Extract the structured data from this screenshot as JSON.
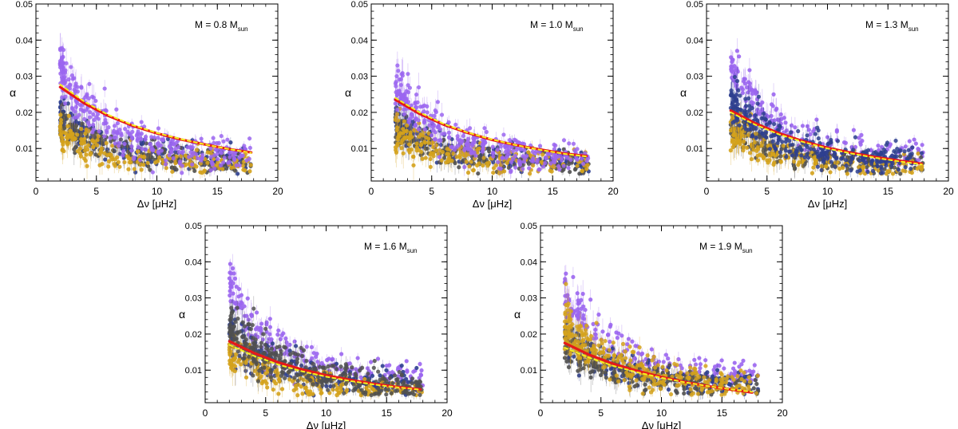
{
  "figure": {
    "background": "#ffffff"
  },
  "colors": {
    "purple": "#9b66f0",
    "navy": "#2e3f8f",
    "gray": "#505050",
    "gold": "#d4a21c",
    "fit_red": "#e41a1a",
    "fit_yellow": "#f5f020"
  },
  "chart_data": [
    {
      "type": "scatter",
      "label": {
        "prefix": "M = ",
        "value": "0.8",
        "unit": "M",
        "unit_sub": "sun"
      },
      "xlabel": {
        "delta": "Δν",
        "units": " [μHz]"
      },
      "ylabel": "α",
      "xlim": [
        0,
        20
      ],
      "ylim": [
        0.001,
        0.05
      ],
      "xticks": [
        "0",
        "5",
        "10",
        "15",
        "20"
      ],
      "yticks": [
        "0.01",
        "0.02",
        "0.03",
        "0.04",
        "0.05"
      ],
      "ytick_values": [
        0.01,
        0.02,
        0.03,
        0.04,
        0.05
      ],
      "xtick_values": [
        0,
        5,
        10,
        15,
        20
      ],
      "front_group": "purple",
      "front_scale": 1.0,
      "series": [
        {
          "group": "purple",
          "trend": {
            "a": 0.033,
            "b": 0.008,
            "k": 0.27
          },
          "spread": 0.0035
        },
        {
          "group": "navy",
          "trend": {
            "a": 0.019,
            "b": 0.0065,
            "k": 0.25
          },
          "spread": 0.0028
        },
        {
          "group": "gray",
          "trend": {
            "a": 0.017,
            "b": 0.006,
            "k": 0.25
          },
          "spread": 0.0026
        },
        {
          "group": "gold",
          "trend": {
            "a": 0.015,
            "b": 0.0055,
            "k": 0.26
          },
          "spread": 0.0028
        }
      ],
      "fit_red": {
        "x": [
          2,
          4,
          6,
          8,
          10,
          12,
          14,
          16,
          17.8
        ],
        "y": [
          0.027,
          0.0225,
          0.019,
          0.0163,
          0.0142,
          0.0125,
          0.0111,
          0.0098,
          0.0089
        ]
      },
      "fit_yellow": {
        "x": [
          2,
          4,
          6,
          8,
          10,
          12,
          14,
          16,
          17.8
        ],
        "y": [
          0.0277,
          0.023,
          0.0193,
          0.0165,
          0.0143,
          0.0126,
          0.0111,
          0.0098,
          0.0088
        ]
      }
    },
    {
      "type": "scatter",
      "label": {
        "prefix": "M = ",
        "value": "1.0",
        "unit": "M",
        "unit_sub": "sun"
      },
      "xlabel": {
        "delta": "Δν",
        "units": " [μHz]"
      },
      "ylabel": "α",
      "xlim": [
        0,
        20
      ],
      "ylim": [
        0.001,
        0.05
      ],
      "xticks": [
        "0",
        "5",
        "10",
        "15",
        "20"
      ],
      "yticks": [
        "0.01",
        "0.02",
        "0.03",
        "0.04",
        "0.05"
      ],
      "ytick_values": [
        0.01,
        0.02,
        0.03,
        0.04,
        0.05
      ],
      "xtick_values": [
        0,
        5,
        10,
        15,
        20
      ],
      "front_group": "purple",
      "front_scale": 0.85,
      "series": [
        {
          "group": "purple",
          "trend": {
            "a": 0.033,
            "b": 0.0085,
            "k": 0.27
          },
          "spread": 0.0035
        },
        {
          "group": "navy",
          "trend": {
            "a": 0.018,
            "b": 0.0062,
            "k": 0.25
          },
          "spread": 0.0028
        },
        {
          "group": "gray",
          "trend": {
            "a": 0.016,
            "b": 0.0058,
            "k": 0.25
          },
          "spread": 0.0026
        },
        {
          "group": "gold",
          "trend": {
            "a": 0.0145,
            "b": 0.0055,
            "k": 0.26
          },
          "spread": 0.0028
        }
      ],
      "fit_red": {
        "x": [
          2,
          4,
          6,
          8,
          10,
          12,
          14,
          16,
          17.8
        ],
        "y": [
          0.0235,
          0.0196,
          0.0166,
          0.0143,
          0.0124,
          0.0109,
          0.0097,
          0.0086,
          0.0079
        ]
      },
      "fit_yellow": {
        "x": [
          2,
          4,
          6,
          8,
          10,
          12,
          14,
          16,
          17.8
        ],
        "y": [
          0.024,
          0.02,
          0.0168,
          0.0144,
          0.0125,
          0.0109,
          0.0096,
          0.0085,
          0.0078
        ]
      }
    },
    {
      "type": "scatter",
      "label": {
        "prefix": "M = ",
        "value": "1.3",
        "unit": "M",
        "unit_sub": "sun"
      },
      "xlabel": {
        "delta": "Δν",
        "units": " [μHz]"
      },
      "ylabel": "α",
      "xlim": [
        0,
        20
      ],
      "ylim": [
        0.001,
        0.05
      ],
      "xticks": [
        "0",
        "5",
        "10",
        "15",
        "20"
      ],
      "yticks": [
        "0.01",
        "0.02",
        "0.03",
        "0.04",
        "0.05"
      ],
      "ytick_values": [
        0.01,
        0.02,
        0.03,
        0.04,
        0.05
      ],
      "xtick_values": [
        0,
        5,
        10,
        15,
        20
      ],
      "front_group": "navy",
      "front_scale": 1.0,
      "series": [
        {
          "group": "purple",
          "trend": {
            "a": 0.033,
            "b": 0.0085,
            "k": 0.27
          },
          "spread": 0.0035
        },
        {
          "group": "navy",
          "trend": {
            "a": 0.023,
            "b": 0.006,
            "k": 0.22
          },
          "spread": 0.0032
        },
        {
          "group": "gray",
          "trend": {
            "a": 0.017,
            "b": 0.0055,
            "k": 0.25
          },
          "spread": 0.0026
        },
        {
          "group": "gold",
          "trend": {
            "a": 0.015,
            "b": 0.005,
            "k": 0.26
          },
          "spread": 0.0028
        }
      ],
      "fit_red": {
        "x": [
          2,
          4,
          6,
          8,
          10,
          12,
          14,
          16,
          17.8
        ],
        "y": [
          0.0205,
          0.017,
          0.0142,
          0.012,
          0.0102,
          0.0088,
          0.0076,
          0.0066,
          0.0058
        ]
      },
      "fit_yellow": {
        "x": [
          2,
          4,
          6,
          8,
          10,
          12,
          14,
          16,
          17.8
        ],
        "y": [
          0.02,
          0.0166,
          0.0139,
          0.0118,
          0.01,
          0.0086,
          0.0074,
          0.0064,
          0.0056
        ]
      }
    },
    {
      "type": "scatter",
      "label": {
        "prefix": "M = ",
        "value": "1.6",
        "unit": "M",
        "unit_sub": "sun"
      },
      "xlabel": {
        "delta": "Δν",
        "units": " [μHz]"
      },
      "ylabel": "α",
      "xlim": [
        0,
        20
      ],
      "ylim": [
        0.001,
        0.05
      ],
      "xticks": [
        "0",
        "5",
        "10",
        "15",
        "20"
      ],
      "yticks": [
        "0.01",
        "0.02",
        "0.03",
        "0.04",
        "0.05"
      ],
      "ytick_values": [
        0.01,
        0.02,
        0.03,
        0.04,
        0.05
      ],
      "xtick_values": [
        0,
        5,
        10,
        15,
        20
      ],
      "front_group": "gray",
      "front_scale": 1.0,
      "series": [
        {
          "group": "purple",
          "trend": {
            "a": 0.033,
            "b": 0.0085,
            "k": 0.27
          },
          "spread": 0.0035
        },
        {
          "group": "navy",
          "trend": {
            "a": 0.02,
            "b": 0.0058,
            "k": 0.24
          },
          "spread": 0.003
        },
        {
          "group": "gray",
          "trend": {
            "a": 0.023,
            "b": 0.0052,
            "k": 0.21
          },
          "spread": 0.0034
        },
        {
          "group": "gold",
          "trend": {
            "a": 0.0145,
            "b": 0.0048,
            "k": 0.26
          },
          "spread": 0.0028
        }
      ],
      "fit_red": {
        "x": [
          2,
          4,
          6,
          8,
          10,
          12,
          14,
          16,
          17.8
        ],
        "y": [
          0.018,
          0.0148,
          0.0122,
          0.0102,
          0.0086,
          0.0073,
          0.0062,
          0.0053,
          0.0047
        ]
      },
      "fit_yellow": {
        "x": [
          2,
          4,
          6,
          8,
          10,
          12,
          14,
          16,
          17.8
        ],
        "y": [
          0.017,
          0.014,
          0.0116,
          0.0097,
          0.0082,
          0.007,
          0.006,
          0.0052,
          0.0046
        ]
      }
    },
    {
      "type": "scatter",
      "label": {
        "prefix": "M = ",
        "value": "1.9",
        "unit": "M",
        "unit_sub": "sun"
      },
      "xlabel": {
        "delta": "Δν",
        "units": " [μHz]"
      },
      "ylabel": "α",
      "xlim": [
        0,
        20
      ],
      "ylim": [
        0.001,
        0.05
      ],
      "xticks": [
        "0",
        "5",
        "10",
        "15",
        "20"
      ],
      "yticks": [
        "0.01",
        "0.02",
        "0.03",
        "0.04",
        "0.05"
      ],
      "ytick_values": [
        0.01,
        0.02,
        0.03,
        0.04,
        0.05
      ],
      "xtick_values": [
        0,
        5,
        10,
        15,
        20
      ],
      "front_group": "gold",
      "front_scale": 1.0,
      "series": [
        {
          "group": "purple",
          "trend": {
            "a": 0.033,
            "b": 0.0085,
            "k": 0.27
          },
          "spread": 0.0035
        },
        {
          "group": "navy",
          "trend": {
            "a": 0.019,
            "b": 0.0058,
            "k": 0.24
          },
          "spread": 0.003
        },
        {
          "group": "gray",
          "trend": {
            "a": 0.017,
            "b": 0.0052,
            "k": 0.24
          },
          "spread": 0.0028
        },
        {
          "group": "gold",
          "trend": {
            "a": 0.023,
            "b": 0.005,
            "k": 0.22
          },
          "spread": 0.0034
        }
      ],
      "fit_red": {
        "x": [
          2,
          4,
          6,
          8,
          10,
          12,
          14,
          16,
          17.5
        ],
        "y": [
          0.0175,
          0.0143,
          0.0118,
          0.0098,
          0.0081,
          0.0067,
          0.0055,
          0.0045,
          0.0038
        ]
      },
      "fit_yellow": {
        "x": [
          2,
          4,
          6,
          8,
          10,
          12,
          14,
          16,
          17.5
        ],
        "y": [
          0.0162,
          0.0135,
          0.0112,
          0.0094,
          0.0079,
          0.0066,
          0.0055,
          0.0046,
          0.004
        ]
      }
    }
  ]
}
